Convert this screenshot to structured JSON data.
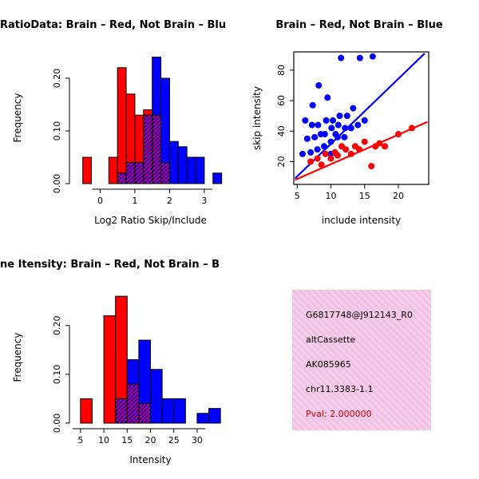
{
  "window": {
    "background": "#FFFFFF"
  },
  "colors": {
    "brain": "#FF0000",
    "not_brain": "#0000FF",
    "info_box_bg": "#F5C9E8",
    "pval_text": "#CC0000"
  },
  "chart_data": [
    {
      "type": "bar",
      "panel": "top-left",
      "title": "RatioData: Brain – Red, Not Brain – Blu",
      "xlabel": "Log2 Ratio Skip/Include",
      "ylabel": "Frequency",
      "xlim": [
        -0.7,
        3.6
      ],
      "ylim": [
        0,
        0.25
      ],
      "xticks": [
        0,
        1,
        2,
        3
      ],
      "yticks": [
        0,
        0.1,
        0.2
      ],
      "ytick_labels": [
        "0.00",
        "0.10",
        "0.20"
      ],
      "grid": false,
      "bin_start": -0.5,
      "bin_width": 0.25,
      "overlap_style": "diagonal-hatch",
      "series": [
        {
          "name": "Brain",
          "color": "#FF0000",
          "values": [
            0.05,
            0,
            0,
            0.05,
            0.22,
            0.17,
            0.13,
            0.14,
            0.13,
            0.04,
            0,
            0,
            0,
            0,
            0,
            0
          ]
        },
        {
          "name": "Not Brain",
          "color": "#0000FF",
          "values": [
            0,
            0,
            0,
            0,
            0.02,
            0.04,
            0.04,
            0.13,
            0.24,
            0.2,
            0.08,
            0.07,
            0.05,
            0.05,
            0,
            0.02
          ]
        }
      ]
    },
    {
      "type": "scatter",
      "panel": "top-right",
      "title": "Brain – Red, Not Brain – Blue",
      "xlabel": "include intensity",
      "ylabel": "skip intensity",
      "xlim": [
        4.5,
        24.5
      ],
      "ylim": [
        5,
        92
      ],
      "xticks": [
        5,
        10,
        15,
        20
      ],
      "yticks": [
        20,
        40,
        60,
        80
      ],
      "grid": false,
      "box": true,
      "series": [
        {
          "name": "Not Brain",
          "color": "#0000FF",
          "line": {
            "x1": 4.7,
            "y1": 9,
            "x2": 23.9,
            "y2": 91
          },
          "points": [
            [
              5.8,
              25
            ],
            [
              6.2,
              47
            ],
            [
              6.5,
              35
            ],
            [
              7,
              26
            ],
            [
              7.2,
              44
            ],
            [
              7.3,
              57
            ],
            [
              7.6,
              36
            ],
            [
              8,
              28
            ],
            [
              8.1,
              44
            ],
            [
              8.2,
              70
            ],
            [
              8.5,
              38
            ],
            [
              9,
              30
            ],
            [
              9.1,
              38
            ],
            [
              9.3,
              47
            ],
            [
              9.5,
              62
            ],
            [
              10,
              25
            ],
            [
              10,
              33
            ],
            [
              10.1,
              42
            ],
            [
              10.3,
              47
            ],
            [
              10.7,
              38
            ],
            [
              11,
              36
            ],
            [
              11.1,
              44
            ],
            [
              11.3,
              50
            ],
            [
              11.5,
              88
            ],
            [
              12,
              36
            ],
            [
              12.1,
              42
            ],
            [
              12.4,
              50
            ],
            [
              13,
              42
            ],
            [
              13.3,
              55
            ],
            [
              14,
              44
            ],
            [
              14.3,
              88
            ],
            [
              15,
              47
            ],
            [
              16.2,
              89
            ]
          ]
        },
        {
          "name": "Brain",
          "color": "#FF0000",
          "line": {
            "x1": 4.7,
            "y1": 8,
            "x2": 24.3,
            "y2": 46
          },
          "points": [
            [
              7,
              20
            ],
            [
              8,
              22
            ],
            [
              8.6,
              18
            ],
            [
              9.2,
              25
            ],
            [
              10,
              22
            ],
            [
              10.6,
              26
            ],
            [
              11,
              24
            ],
            [
              11.6,
              30
            ],
            [
              12.2,
              28
            ],
            [
              13,
              25
            ],
            [
              13.6,
              30
            ],
            [
              14.2,
              28
            ],
            [
              15,
              33
            ],
            [
              16,
              17
            ],
            [
              16.6,
              30
            ],
            [
              17.2,
              32
            ],
            [
              18,
              30
            ],
            [
              20,
              38
            ],
            [
              22,
              42
            ]
          ]
        }
      ]
    },
    {
      "type": "bar",
      "panel": "bottom-left",
      "title": "ne Itensity: Brain – Red, Not Brain – B",
      "xlabel": "Intensity",
      "ylabel": "Frequency",
      "xlim": [
        4,
        36
      ],
      "ylim": [
        0,
        0.27
      ],
      "xticks": [
        5,
        10,
        15,
        20,
        25,
        30
      ],
      "yticks": [
        0,
        0.1,
        0.2
      ],
      "ytick_labels": [
        "0.00",
        "0.10",
        "0.20"
      ],
      "grid": false,
      "bin_start": 5,
      "bin_width": 2.5,
      "overlap_style": "diagonal-hatch",
      "series": [
        {
          "name": "Brain",
          "color": "#FF0000",
          "values": [
            0.05,
            0,
            0.22,
            0.26,
            0.08,
            0.04,
            0,
            0,
            0,
            0,
            0,
            0,
            0
          ]
        },
        {
          "name": "Not Brain",
          "color": "#0000FF",
          "values": [
            0,
            0,
            0,
            0.05,
            0.13,
            0.17,
            0.11,
            0.05,
            0.05,
            0,
            0.02,
            0.03,
            0
          ]
        }
      ]
    }
  ],
  "info_box": {
    "lines": [
      "G6817748@J912143_R0",
      "altCassette",
      "AK085965",
      "chr11.3383-1.1",
      "Pval: 2.000000"
    ]
  }
}
